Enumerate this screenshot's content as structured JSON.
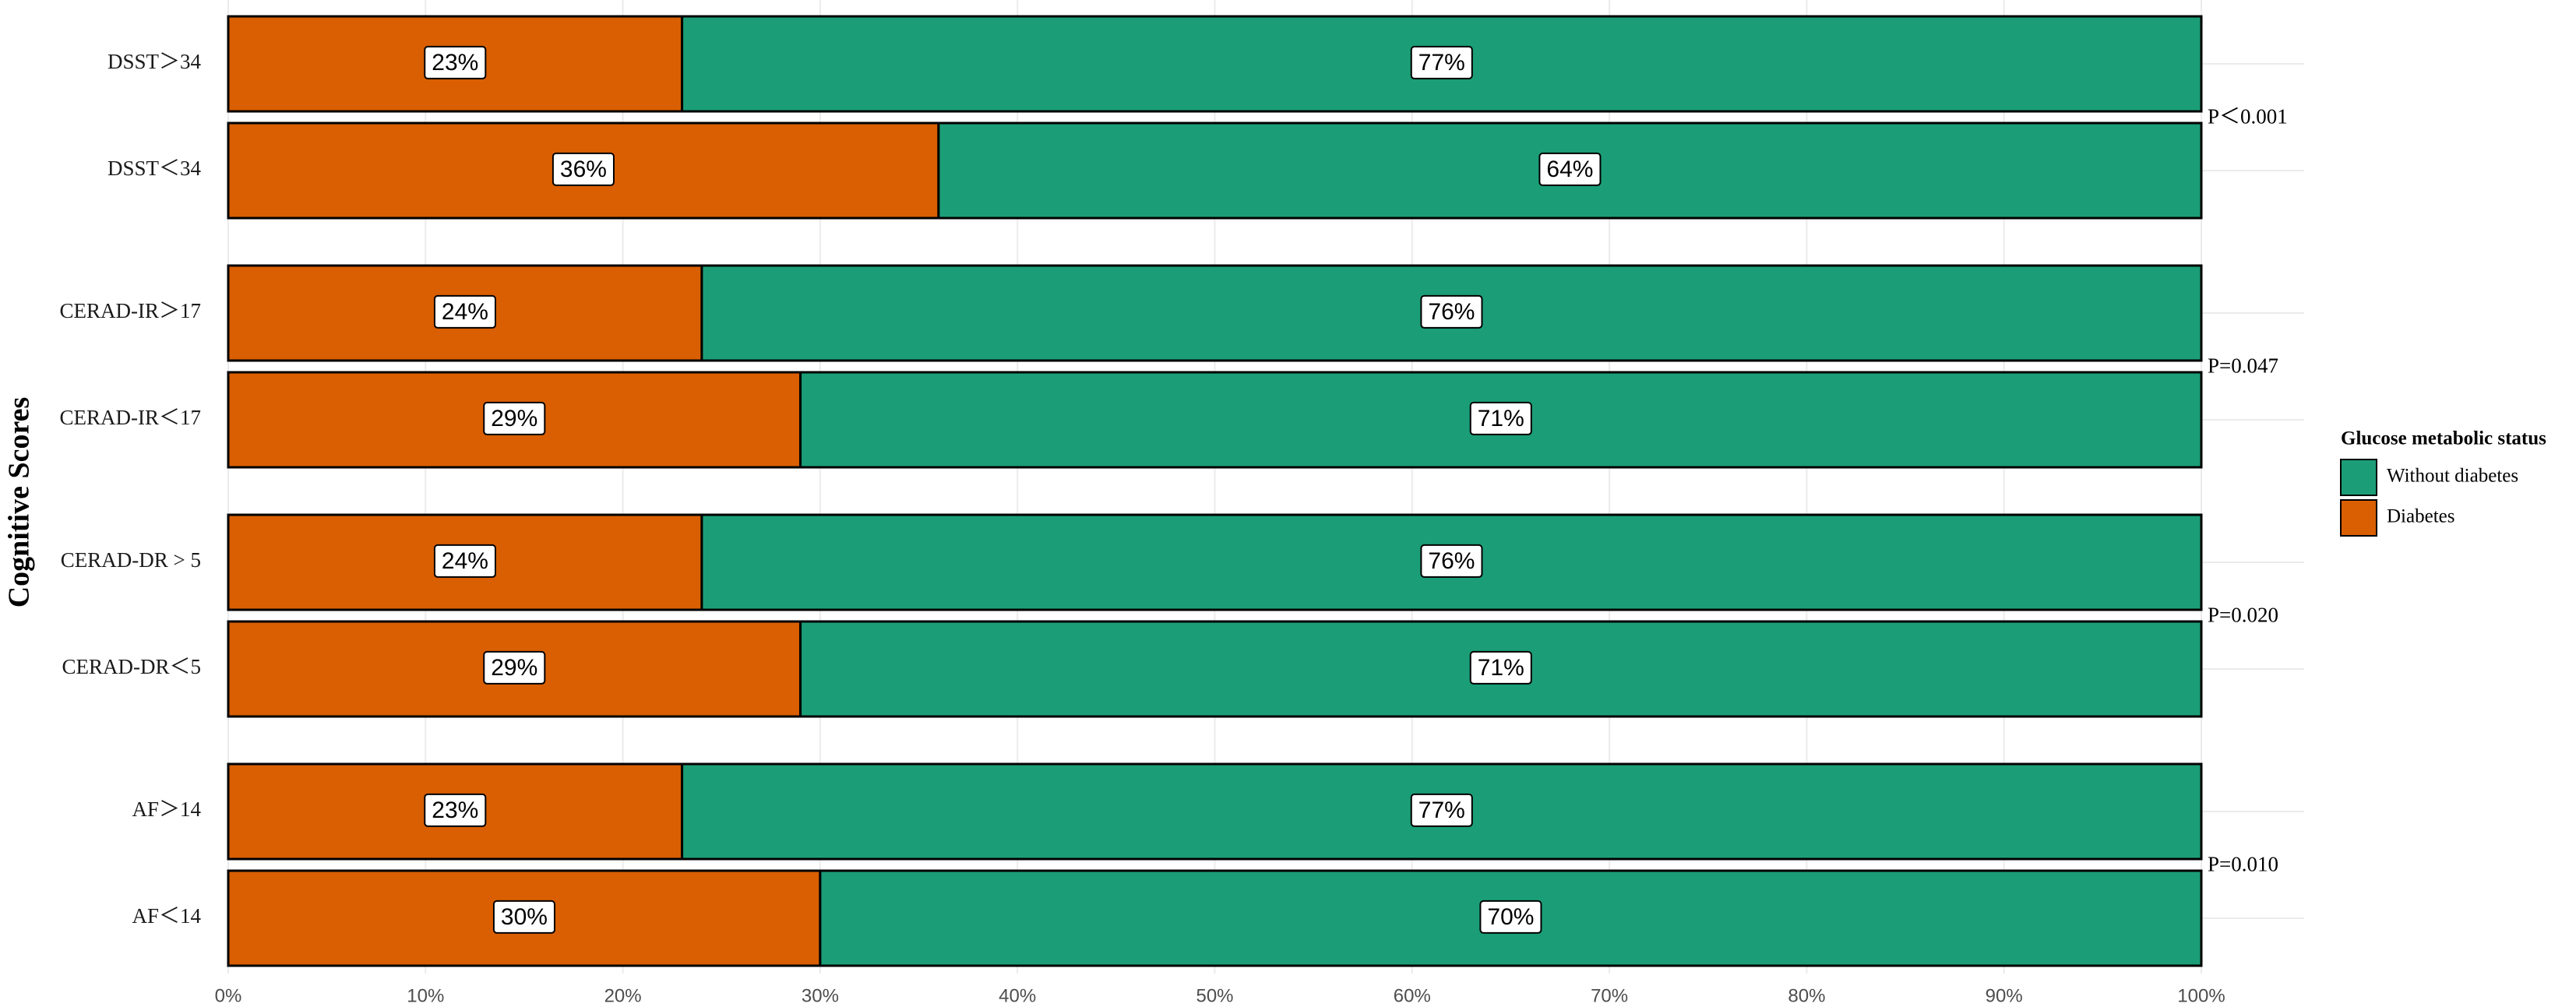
{
  "chart_data": {
    "type": "stacked-barh",
    "y_axis_label": "Cognitive Scores",
    "categories": [
      "DSST＞34",
      "DSST＜34",
      "CERAD-IR＞17",
      "CERAD-IR＜17",
      "CERAD-DR > 5",
      "CERAD-DR＜5",
      "AF＞14",
      "AF＜14"
    ],
    "series": [
      {
        "name": "Diabetes",
        "color": "#d95f02",
        "values": [
          23,
          36,
          24,
          29,
          24,
          29,
          23,
          30
        ],
        "value_labels": [
          "23%",
          "36%",
          "24%",
          "29%",
          "24%",
          "29%",
          "23%",
          "30%"
        ]
      },
      {
        "name": "Without diabetes",
        "color": "#1b9e77",
        "values": [
          77,
          64,
          76,
          71,
          76,
          71,
          77,
          70
        ],
        "value_labels": [
          "77%",
          "64%",
          "76%",
          "71%",
          "76%",
          "71%",
          "77%",
          "70%"
        ]
      }
    ],
    "annotations": [
      "P＜0.001",
      "P=0.047",
      "P=0.020",
      "P=0.010"
    ],
    "xlim": [
      0,
      100
    ],
    "xticks": [
      {
        "value": 0,
        "label": "0%"
      },
      {
        "value": 10,
        "label": "10%"
      },
      {
        "value": 20,
        "label": "20%"
      },
      {
        "value": 30,
        "label": "30%"
      },
      {
        "value": 40,
        "label": "40%"
      },
      {
        "value": 50,
        "label": "50%"
      },
      {
        "value": 60,
        "label": "60%"
      },
      {
        "value": 70,
        "label": "70%"
      },
      {
        "value": 80,
        "label": "80%"
      },
      {
        "value": 90,
        "label": "90%"
      },
      {
        "value": 100,
        "label": "100%"
      }
    ],
    "legend_title": "Glucose metabolic status",
    "legend_position": "right",
    "grid": true
  }
}
